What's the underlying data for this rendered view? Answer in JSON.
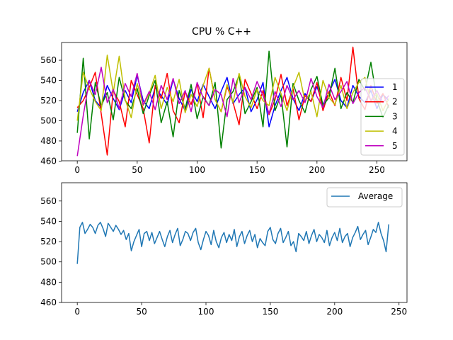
{
  "chart_data": [
    {
      "type": "line",
      "title": "CPU % C++",
      "xlabel": "",
      "ylabel": "",
      "xlim": [
        -13.1,
        275.1
      ],
      "ylim": [
        460.3,
        577.6
      ],
      "xticks": [
        0,
        50,
        100,
        150,
        200,
        250
      ],
      "yticks": [
        460,
        480,
        500,
        520,
        540,
        560
      ],
      "grid": false,
      "legend_position": "right",
      "series": [
        {
          "name": "1",
          "color": "#0000ff",
          "x": [
            0,
            5,
            10,
            15,
            20,
            25,
            30,
            35,
            40,
            45,
            50,
            55,
            60,
            65,
            70,
            75,
            80,
            85,
            90,
            95,
            100,
            105,
            110,
            115,
            120,
            125,
            130,
            135,
            140,
            145,
            150,
            155,
            160,
            165,
            170,
            175,
            180,
            185,
            190,
            195,
            200,
            205,
            210,
            215,
            220,
            225,
            230,
            235,
            240,
            245,
            250,
            255,
            260
          ],
          "values": [
            509,
            528,
            540,
            520,
            513,
            535,
            522,
            511,
            530,
            518,
            545,
            520,
            512,
            533,
            525,
            516,
            541,
            522,
            510,
            531,
            519,
            536,
            524,
            512,
            529,
            543,
            517,
            526,
            533,
            509,
            521,
            538,
            494,
            515,
            530,
            543,
            522,
            510,
            527,
            519,
            534,
            516,
            528,
            541,
            520,
            513,
            535,
            524,
            518,
            530,
            512,
            526,
            520
          ]
        },
        {
          "name": "2",
          "color": "#ff0000",
          "x": [
            0,
            5,
            10,
            15,
            20,
            25,
            30,
            35,
            40,
            45,
            50,
            55,
            60,
            65,
            70,
            75,
            80,
            85,
            90,
            95,
            100,
            105,
            110,
            115,
            120,
            125,
            130,
            135,
            140,
            145,
            150,
            155,
            160,
            165,
            170,
            175,
            180,
            185,
            190,
            195,
            200,
            205,
            210,
            215,
            220,
            225,
            230,
            235,
            240,
            245,
            250,
            255,
            260
          ],
          "values": [
            513,
            520,
            533,
            548,
            507,
            466,
            530,
            519,
            494,
            540,
            526,
            512,
            478,
            535,
            522,
            547,
            510,
            498,
            529,
            516,
            537,
            503,
            552,
            521,
            509,
            534,
            518,
            496,
            541,
            527,
            512,
            530,
            506,
            521,
            546,
            515,
            532,
            501,
            525,
            519,
            538,
            510,
            529,
            515,
            543,
            520,
            573,
            522,
            511,
            535,
            517,
            527,
            513
          ]
        },
        {
          "name": "3",
          "color": "#008000",
          "x": [
            0,
            5,
            10,
            15,
            20,
            25,
            30,
            35,
            40,
            45,
            50,
            55,
            60,
            65,
            70,
            75,
            80,
            85,
            90,
            95,
            100,
            105,
            110,
            115,
            120,
            125,
            130,
            135,
            140,
            145,
            150,
            155,
            160,
            165,
            170,
            175,
            180,
            185,
            190,
            195,
            200,
            205,
            210,
            215,
            220,
            225,
            230,
            235,
            240,
            245,
            250,
            255,
            260
          ],
          "values": [
            488,
            562,
            482,
            538,
            515,
            528,
            501,
            543,
            520,
            512,
            532,
            507,
            525,
            540,
            498,
            519,
            484,
            530,
            512,
            536,
            502,
            524,
            515,
            538,
            473,
            521,
            529,
            545,
            507,
            519,
            533,
            494,
            569,
            510,
            526,
            474,
            537,
            520,
            508,
            531,
            544,
            515,
            523,
            552,
            512,
            528,
            518,
            541,
            530,
            558,
            521,
            503,
            516
          ]
        },
        {
          "name": "4",
          "color": "#bfbf00",
          "x": [
            0,
            5,
            10,
            15,
            20,
            25,
            30,
            35,
            40,
            45,
            50,
            55,
            60,
            65,
            70,
            75,
            80,
            85,
            90,
            95,
            100,
            105,
            110,
            115,
            120,
            125,
            130,
            135,
            140,
            145,
            150,
            155,
            160,
            165,
            170,
            175,
            180,
            185,
            190,
            195,
            200,
            205,
            210,
            215,
            220,
            225,
            230,
            235,
            240,
            245,
            250,
            255,
            260
          ],
          "values": [
            500,
            548,
            532,
            519,
            510,
            565,
            528,
            564,
            521,
            503,
            537,
            515,
            527,
            545,
            512,
            533,
            519,
            541,
            508,
            526,
            514,
            535,
            552,
            521,
            509,
            536,
            518,
            547,
            524,
            513,
            531,
            520,
            515,
            543,
            527,
            510,
            533,
            548,
            519,
            529,
            504,
            540,
            523,
            516,
            535,
            512,
            528,
            538,
            543,
            519,
            527,
            510,
            522
          ]
        },
        {
          "name": "5",
          "color": "#bf00bf",
          "x": [
            0,
            5,
            10,
            15,
            20,
            25,
            30,
            35,
            40,
            45,
            50,
            55,
            60,
            65,
            70,
            75,
            80,
            85,
            90,
            95,
            100,
            105,
            110,
            115,
            120,
            125,
            130,
            135,
            140,
            145,
            150,
            155,
            160,
            165,
            170,
            175,
            180,
            185,
            190,
            195,
            200,
            205,
            210,
            215,
            220,
            225,
            230,
            235,
            240,
            245,
            250,
            255,
            260
          ],
          "values": [
            465,
            505,
            540,
            526,
            553,
            518,
            531,
            512,
            537,
            524,
            547,
            516,
            529,
            511,
            535,
            521,
            542,
            517,
            530,
            509,
            538,
            523,
            515,
            531,
            526,
            504,
            542,
            518,
            533,
            521,
            539,
            525,
            507,
            529,
            514,
            535,
            521,
            530,
            518,
            542,
            524,
            513,
            536,
            521,
            529,
            539,
            517,
            528,
            533,
            520,
            530,
            518,
            525
          ]
        }
      ]
    },
    {
      "type": "line",
      "title": "",
      "xlabel": "",
      "ylabel": "",
      "xlim": [
        -12.2,
        256.2
      ],
      "ylim": [
        460,
        578
      ],
      "xticks": [
        0,
        50,
        100,
        150,
        200,
        250
      ],
      "yticks": [
        460,
        480,
        500,
        520,
        540,
        560
      ],
      "grid": false,
      "legend_position": "top-right",
      "series": [
        {
          "name": "Average",
          "color": "#1f77b4",
          "x": [
            0,
            2,
            4,
            6,
            8,
            10,
            12,
            14,
            16,
            18,
            20,
            22,
            24,
            26,
            28,
            30,
            32,
            34,
            36,
            38,
            40,
            42,
            44,
            46,
            48,
            50,
            52,
            54,
            56,
            58,
            60,
            62,
            64,
            66,
            68,
            70,
            72,
            74,
            76,
            78,
            80,
            82,
            84,
            86,
            88,
            90,
            92,
            94,
            96,
            98,
            100,
            102,
            104,
            106,
            108,
            110,
            112,
            114,
            116,
            118,
            120,
            122,
            124,
            126,
            128,
            130,
            132,
            134,
            136,
            138,
            140,
            142,
            144,
            146,
            148,
            150,
            152,
            154,
            156,
            158,
            160,
            162,
            164,
            166,
            168,
            170,
            172,
            174,
            176,
            178,
            180,
            182,
            184,
            186,
            188,
            190,
            192,
            194,
            196,
            198,
            200,
            202,
            204,
            206,
            208,
            210,
            212,
            214,
            216,
            218,
            220,
            222,
            224,
            226,
            228,
            230,
            232,
            234,
            236,
            238,
            240,
            242
          ],
          "values": [
            498,
            534,
            539,
            528,
            532,
            537,
            534,
            528,
            536,
            539,
            533,
            525,
            538,
            534,
            530,
            536,
            532,
            527,
            531,
            522,
            528,
            511,
            520,
            526,
            532,
            515,
            528,
            530,
            521,
            529,
            518,
            524,
            530,
            522,
            515,
            525,
            531,
            519,
            527,
            533,
            516,
            522,
            530,
            528,
            521,
            529,
            533,
            519,
            512,
            522,
            530,
            526,
            517,
            531,
            520,
            514,
            524,
            529,
            519,
            527,
            521,
            532,
            515,
            525,
            530,
            518,
            526,
            531,
            520,
            527,
            514,
            523,
            519,
            516,
            530,
            534,
            522,
            518,
            528,
            533,
            519,
            524,
            530,
            516,
            520,
            510,
            528,
            525,
            521,
            530,
            518,
            526,
            532,
            520,
            527,
            524,
            519,
            531,
            516,
            524,
            529,
            521,
            533,
            519,
            525,
            528,
            515,
            524,
            529,
            535,
            522,
            527,
            531,
            517,
            524,
            532,
            529,
            539,
            528,
            521,
            510,
            537
          ]
        }
      ]
    }
  ]
}
